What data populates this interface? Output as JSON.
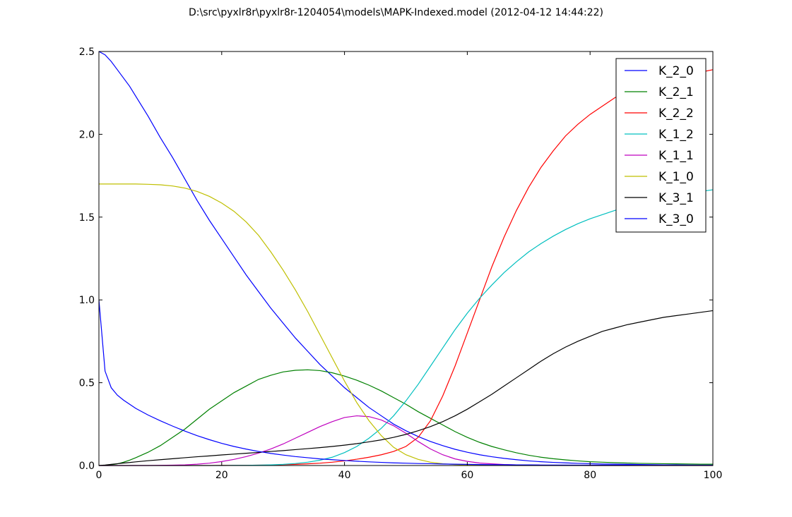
{
  "chart_data": {
    "type": "line",
    "title": "D:\\src\\pyxlr8r\\pyxlr8r-1204054\\models\\MAPK-Indexed.model (2012-04-12 14:44:22)",
    "xlabel": "",
    "ylabel": "",
    "xlim": [
      0,
      100
    ],
    "ylim": [
      0,
      2.5
    ],
    "xticks": [
      0,
      20,
      40,
      60,
      80,
      100
    ],
    "xtick_labels": [
      "0",
      "20",
      "40",
      "60",
      "80",
      "100"
    ],
    "yticks": [
      0,
      0.5,
      1.0,
      1.5,
      2.0,
      2.5
    ],
    "ytick_labels": [
      "0.0",
      "0.5",
      "1.0",
      "1.5",
      "2.0",
      "2.5"
    ],
    "grid": false,
    "legend_position": "top-right",
    "x": [
      0,
      1,
      2,
      3,
      4,
      5,
      6,
      8,
      10,
      12,
      14,
      16,
      18,
      20,
      22,
      24,
      26,
      28,
      30,
      32,
      34,
      36,
      38,
      40,
      42,
      44,
      46,
      48,
      50,
      52,
      54,
      56,
      58,
      60,
      62,
      64,
      66,
      68,
      70,
      72,
      74,
      76,
      78,
      80,
      82,
      84,
      86,
      88,
      90,
      92,
      94,
      96,
      98,
      100
    ],
    "series": [
      {
        "name": "K_2_0",
        "color": "#0000ff",
        "values": [
          2.5,
          2.48,
          2.44,
          2.39,
          2.34,
          2.29,
          2.23,
          2.11,
          1.98,
          1.86,
          1.73,
          1.6,
          1.48,
          1.37,
          1.26,
          1.15,
          1.05,
          0.95,
          0.86,
          0.77,
          0.69,
          0.61,
          0.54,
          0.47,
          0.41,
          0.35,
          0.3,
          0.25,
          0.21,
          0.175,
          0.145,
          0.12,
          0.098,
          0.08,
          0.065,
          0.053,
          0.043,
          0.035,
          0.028,
          0.023,
          0.019,
          0.016,
          0.013,
          0.011,
          0.009,
          0.008,
          0.007,
          0.006,
          0.005,
          0.004,
          0.004,
          0.003,
          0.003,
          0.003
        ]
      },
      {
        "name": "K_2_1",
        "color": "#008000",
        "values": [
          0.0,
          0.001,
          0.004,
          0.01,
          0.02,
          0.032,
          0.047,
          0.08,
          0.12,
          0.17,
          0.22,
          0.28,
          0.34,
          0.39,
          0.44,
          0.48,
          0.52,
          0.545,
          0.565,
          0.575,
          0.578,
          0.573,
          0.56,
          0.54,
          0.515,
          0.485,
          0.45,
          0.41,
          0.37,
          0.325,
          0.285,
          0.245,
          0.205,
          0.17,
          0.14,
          0.115,
          0.095,
          0.077,
          0.062,
          0.05,
          0.041,
          0.034,
          0.028,
          0.023,
          0.02,
          0.017,
          0.015,
          0.013,
          0.012,
          0.011,
          0.01,
          0.009,
          0.008,
          0.008
        ]
      },
      {
        "name": "K_2_2",
        "color": "#ff0000",
        "values": [
          0.0,
          0.0,
          0.0,
          0.0,
          0.0,
          0.0,
          0.0,
          0.0,
          0.0,
          0.0,
          0.0,
          0.0,
          0.0,
          0.001,
          0.001,
          0.001,
          0.002,
          0.003,
          0.005,
          0.007,
          0.01,
          0.014,
          0.02,
          0.028,
          0.038,
          0.05,
          0.065,
          0.085,
          0.115,
          0.17,
          0.27,
          0.42,
          0.6,
          0.8,
          1.0,
          1.2,
          1.38,
          1.54,
          1.68,
          1.8,
          1.9,
          1.99,
          2.06,
          2.12,
          2.17,
          2.22,
          2.26,
          2.29,
          2.315,
          2.335,
          2.35,
          2.365,
          2.375,
          2.39
        ]
      },
      {
        "name": "K_1_2",
        "color": "#00bfbf",
        "values": [
          0.0,
          0.0,
          0.0,
          0.0,
          0.0,
          0.0,
          0.0,
          0.0,
          0.0,
          0.0,
          0.0,
          0.0,
          0.0,
          0.0,
          0.001,
          0.001,
          0.002,
          0.004,
          0.007,
          0.012,
          0.02,
          0.032,
          0.05,
          0.078,
          0.115,
          0.165,
          0.225,
          0.3,
          0.39,
          0.49,
          0.6,
          0.71,
          0.82,
          0.92,
          1.01,
          1.09,
          1.165,
          1.23,
          1.29,
          1.34,
          1.385,
          1.425,
          1.46,
          1.49,
          1.515,
          1.54,
          1.56,
          1.58,
          1.6,
          1.615,
          1.63,
          1.645,
          1.655,
          1.665
        ]
      },
      {
        "name": "K_1_1",
        "color": "#bf00bf",
        "values": [
          0.0,
          0.0,
          0.0,
          0.0,
          0.0,
          0.0,
          0.0,
          0.0,
          0.001,
          0.002,
          0.004,
          0.008,
          0.014,
          0.024,
          0.037,
          0.054,
          0.075,
          0.1,
          0.13,
          0.165,
          0.2,
          0.235,
          0.265,
          0.29,
          0.3,
          0.295,
          0.275,
          0.24,
          0.195,
          0.145,
          0.1,
          0.065,
          0.04,
          0.025,
          0.015,
          0.01,
          0.006,
          0.004,
          0.003,
          0.002,
          0.001,
          0.001,
          0.001,
          0.0,
          0.0,
          0.0,
          0.0,
          0.0,
          0.0,
          0.0,
          0.0,
          0.0,
          0.0,
          0.0
        ]
      },
      {
        "name": "K_1_0",
        "color": "#bfbf00",
        "values": [
          1.7,
          1.7,
          1.7,
          1.7,
          1.7,
          1.7,
          1.7,
          1.698,
          1.695,
          1.688,
          1.675,
          1.655,
          1.625,
          1.585,
          1.535,
          1.47,
          1.39,
          1.29,
          1.18,
          1.06,
          0.93,
          0.79,
          0.65,
          0.51,
          0.38,
          0.27,
          0.18,
          0.11,
          0.065,
          0.037,
          0.02,
          0.011,
          0.006,
          0.003,
          0.002,
          0.001,
          0.001,
          0.0,
          0.0,
          0.0,
          0.0,
          0.0,
          0.0,
          0.0,
          0.0,
          0.0,
          0.0,
          0.0,
          0.0,
          0.0,
          0.0,
          0.0,
          0.0,
          0.0
        ]
      },
      {
        "name": "K_3_1",
        "color": "#000000",
        "values": [
          0.0,
          0.003,
          0.007,
          0.011,
          0.015,
          0.018,
          0.022,
          0.029,
          0.035,
          0.041,
          0.047,
          0.053,
          0.058,
          0.064,
          0.069,
          0.074,
          0.079,
          0.085,
          0.09,
          0.096,
          0.102,
          0.108,
          0.115,
          0.123,
          0.132,
          0.143,
          0.155,
          0.17,
          0.188,
          0.21,
          0.235,
          0.265,
          0.3,
          0.34,
          0.385,
          0.43,
          0.48,
          0.53,
          0.58,
          0.63,
          0.675,
          0.715,
          0.75,
          0.78,
          0.81,
          0.83,
          0.85,
          0.865,
          0.88,
          0.895,
          0.905,
          0.915,
          0.925,
          0.935
        ]
      },
      {
        "name": "K_3_0",
        "color": "#0000ff",
        "values": [
          1.0,
          0.57,
          0.47,
          0.425,
          0.395,
          0.37,
          0.345,
          0.305,
          0.27,
          0.238,
          0.208,
          0.18,
          0.156,
          0.134,
          0.115,
          0.099,
          0.085,
          0.073,
          0.063,
          0.054,
          0.047,
          0.04,
          0.035,
          0.03,
          0.026,
          0.022,
          0.019,
          0.016,
          0.014,
          0.012,
          0.011,
          0.009,
          0.008,
          0.007,
          0.006,
          0.005,
          0.005,
          0.004,
          0.004,
          0.003,
          0.003,
          0.003,
          0.002,
          0.002,
          0.002,
          0.002,
          0.002,
          0.001,
          0.001,
          0.001,
          0.001,
          0.001,
          0.001,
          0.001
        ]
      }
    ]
  }
}
